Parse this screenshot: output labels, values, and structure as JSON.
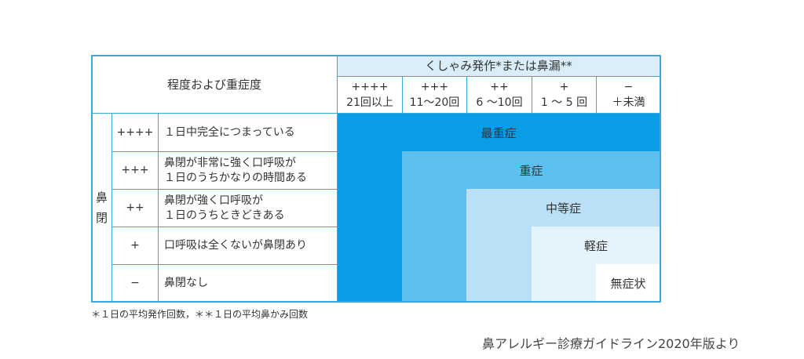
{
  "header": {
    "severity_label": "程度および重症度",
    "sneeze_label": "くしゃみ発作*または鼻漏**"
  },
  "sneeze_columns": [
    {
      "symbol": "++++",
      "range": "21回以上"
    },
    {
      "symbol": "+++",
      "range": "11〜20回"
    },
    {
      "symbol": "++",
      "range": "6 〜10回"
    },
    {
      "symbol": "+",
      "range": "1 〜 5 回"
    },
    {
      "symbol": "−",
      "range": "＋未満"
    }
  ],
  "obstruction_label": [
    "鼻",
    "閉"
  ],
  "rows": [
    {
      "symbol": "++++",
      "lines": [
        "１日中完全につまっている"
      ]
    },
    {
      "symbol": "+++",
      "lines": [
        "鼻閉が非常に強く口呼吸が",
        "１日のうちかなりの時間ある"
      ]
    },
    {
      "symbol": "++",
      "lines": [
        "鼻閉が強く口呼吸が",
        "１日のうちときどきある"
      ]
    },
    {
      "symbol": "+",
      "lines": [
        "口呼吸は全くないが鼻閉あり"
      ]
    },
    {
      "symbol": "−",
      "lines": [
        "鼻閉なし"
      ]
    }
  ],
  "severity_levels": [
    "最重症",
    "重症",
    "中等症",
    "軽症",
    "無症状"
  ],
  "colors": {
    "border": "#3aa9e0",
    "header_bg": "#daeef9",
    "most_severe": "#0b9ee6",
    "severe": "#5ec0f0",
    "moderate": "#b9e0f7",
    "mild": "#e4f3fc",
    "none": "#ffffff"
  },
  "footnote": "＊１日の平均発作回数，＊＊１日の平均鼻かみ回数",
  "source": "鼻アレルギー診療ガイドライン2020年版より"
}
